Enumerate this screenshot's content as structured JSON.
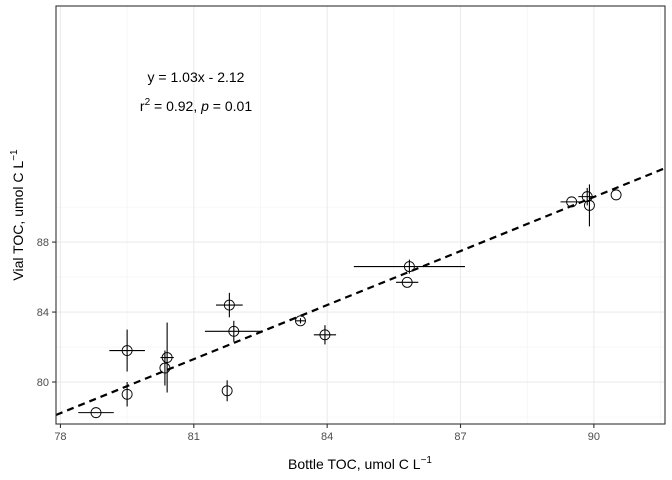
{
  "chart_data": {
    "type": "scatter",
    "xlabel": "Bottle TOC, umol C L",
    "xlabel_sup": "−1",
    "ylabel": "Vial TOC, umol C L",
    "ylabel_sup": "−1",
    "xlim": [
      77.9,
      91.6
    ],
    "ylim": [
      77.6,
      101.5
    ],
    "x_ticks": [
      78,
      81,
      84,
      87,
      90
    ],
    "x_tick_labels": [
      "78",
      "81",
      "84",
      "87",
      "90"
    ],
    "x_minor_ticks": [
      79.5,
      82.5,
      85.5,
      88.5,
      91.5
    ],
    "y_ticks": [
      80,
      84,
      88
    ],
    "y_tick_labels": [
      "80",
      "84",
      "88"
    ],
    "y_minor_ticks": [
      78,
      82,
      86,
      90
    ],
    "grid": true,
    "theme": "bw",
    "points": [
      {
        "x": 78.8,
        "y": 78.25,
        "xerr": 0.4,
        "yerr": 0
      },
      {
        "x": 79.5,
        "y": 79.3,
        "xerr": 0,
        "yerr": 0.7
      },
      {
        "x": 79.5,
        "y": 81.8,
        "xerr": 0.4,
        "yerr": 1.2
      },
      {
        "x": 80.35,
        "y": 80.8,
        "xerr": 0,
        "yerr": 1.0
      },
      {
        "x": 80.4,
        "y": 81.4,
        "xerr": 0.15,
        "yerr": 2.0
      },
      {
        "x": 81.75,
        "y": 79.5,
        "xerr": 0,
        "yerr": 0.6
      },
      {
        "x": 81.8,
        "y": 84.4,
        "xerr": 0.3,
        "yerr": 0.7
      },
      {
        "x": 81.9,
        "y": 82.9,
        "xerr": 0.65,
        "yerr": 0.6
      },
      {
        "x": 83.4,
        "y": 83.5,
        "xerr": 0.1,
        "yerr": 0.15
      },
      {
        "x": 83.95,
        "y": 82.7,
        "xerr": 0.25,
        "yerr": 0.55
      },
      {
        "x": 85.8,
        "y": 85.7,
        "xerr": 0.25,
        "yerr": 0
      },
      {
        "x": 85.85,
        "y": 86.6,
        "xerr": 1.25,
        "yerr": 0.4
      },
      {
        "x": 89.5,
        "y": 90.3,
        "xerr": 0.25,
        "yerr": 0
      },
      {
        "x": 89.85,
        "y": 90.6,
        "xerr": 0.2,
        "yerr": 0.5
      },
      {
        "x": 89.9,
        "y": 90.1,
        "xerr": 0,
        "yerr": 1.2
      },
      {
        "x": 90.5,
        "y": 90.7,
        "xerr": 0,
        "yerr": 0
      }
    ],
    "fit_line": {
      "slope": 1.03,
      "intercept": -2.12,
      "style": "dashed"
    },
    "annotation_line1": "y = 1.03x - 2.12",
    "annotation_line2_r": "r",
    "annotation_line2_r_sup": "2",
    "annotation_line2_mid": " = 0.92, ",
    "annotation_line2_p": "p",
    "annotation_line2_tail": " = 0.01"
  }
}
